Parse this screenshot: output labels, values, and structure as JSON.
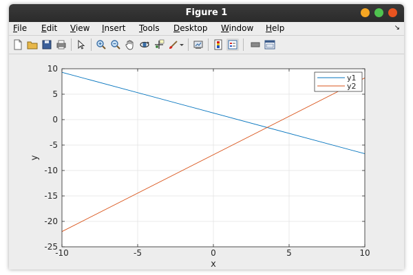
{
  "window": {
    "title": "Figure 1"
  },
  "menu": {
    "items": [
      "File",
      "Edit",
      "View",
      "Insert",
      "Tools",
      "Desktop",
      "Window",
      "Help"
    ]
  },
  "toolbar": {
    "icons": [
      "new-figure-icon",
      "open-file-icon",
      "save-icon",
      "print-icon",
      "pointer-icon",
      "zoom-in-icon",
      "zoom-out-icon",
      "pan-icon",
      "rotate-3d-icon",
      "data-cursor-icon",
      "brush-icon",
      "link-plot-icon",
      "colorbar-icon",
      "legend-icon",
      "hide-plot-tools-icon",
      "show-plot-tools-icon"
    ]
  },
  "colors": {
    "y1": "#0072bd",
    "y2": "#d95319",
    "close": "#e95420",
    "minimize": "#f5a623",
    "maximize": "#4fc34f"
  },
  "chart_data": {
    "type": "line",
    "xlabel": "x",
    "ylabel": "y",
    "xlim": [
      -10,
      10
    ],
    "ylim": [
      -25,
      10
    ],
    "xticks": [
      -10,
      -5,
      0,
      5,
      10
    ],
    "yticks": [
      -25,
      -20,
      -15,
      -10,
      -5,
      0,
      5,
      10
    ],
    "grid": true,
    "legend": "top-right",
    "series": [
      {
        "name": "y1",
        "x": [
          -10,
          10
        ],
        "y": [
          9.3,
          -6.7
        ]
      },
      {
        "name": "y2",
        "x": [
          -10,
          10
        ],
        "y": [
          -22,
          8.2
        ]
      }
    ]
  }
}
